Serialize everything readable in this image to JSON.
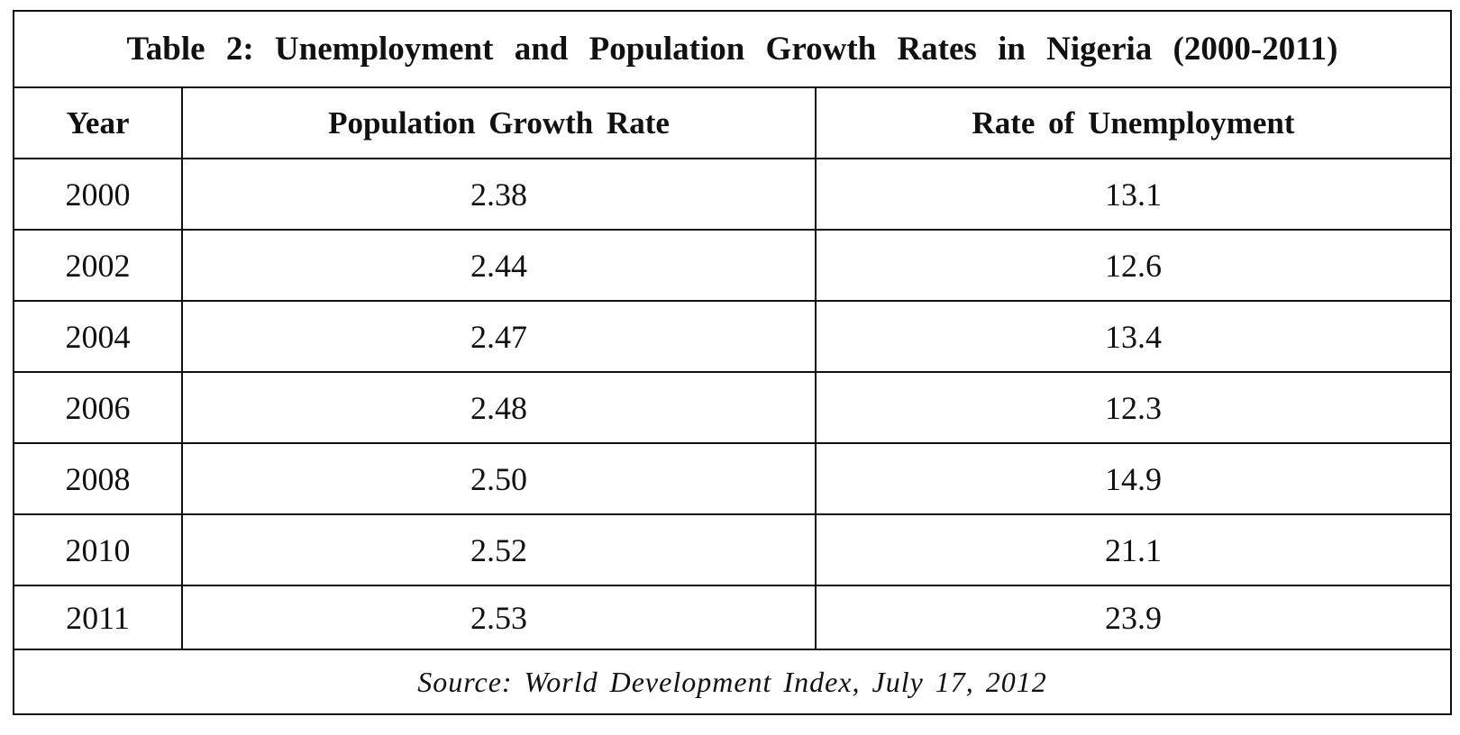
{
  "table": {
    "title": "Table 2: Unemployment and Population Growth Rates in Nigeria (2000-2011)",
    "headers": [
      "Year",
      "Population Growth Rate",
      "Rate of Unemployment"
    ],
    "rows": [
      [
        "2000",
        "2.38",
        "13.1"
      ],
      [
        "2002",
        "2.44",
        "12.6"
      ],
      [
        "2004",
        "2.47",
        "13.4"
      ],
      [
        "2006",
        "2.48",
        "12.3"
      ],
      [
        "2008",
        "2.50",
        "14.9"
      ],
      [
        "2010",
        "2.52",
        "21.1"
      ],
      [
        "2011",
        "2.53",
        "23.9"
      ]
    ],
    "source": "Source: World Development Index, July 17, 2012"
  }
}
